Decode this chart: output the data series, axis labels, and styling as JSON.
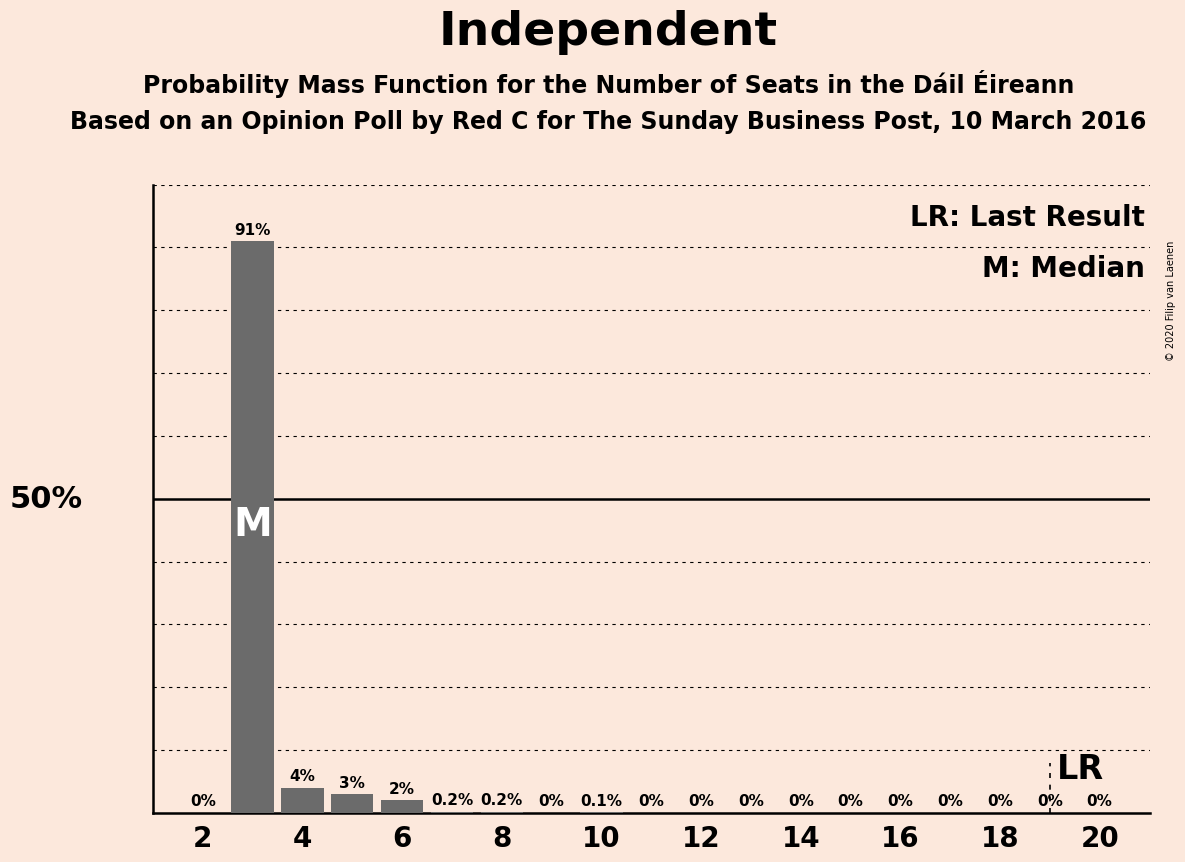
{
  "title": "Independent",
  "subtitle1": "Probability Mass Function for the Number of Seats in the Dáil Éireann",
  "subtitle2": "Based on an Opinion Poll by Red C for The Sunday Business Post, 10 March 2016",
  "copyright": "© 2020 Filip van Laenen",
  "background_color": "#fce8dc",
  "bar_color": "#6b6b6b",
  "bar_positions": [
    2,
    3,
    4,
    5,
    6,
    7,
    8,
    9,
    10,
    11,
    12,
    13,
    14,
    15,
    16,
    17,
    18,
    19,
    20
  ],
  "bar_values": [
    0.0,
    91.0,
    4.0,
    3.0,
    2.0,
    0.2,
    0.2,
    0.0,
    0.1,
    0.0,
    0.0,
    0.0,
    0.0,
    0.0,
    0.0,
    0.0,
    0.0,
    0.0,
    0.0
  ],
  "bar_labels": [
    "0%",
    "91%",
    "4%",
    "3%",
    "2%",
    "0.2%",
    "0.2%",
    "0%",
    "0.1%",
    "0%",
    "0%",
    "0%",
    "0%",
    "0%",
    "0%",
    "0%",
    "0%",
    "0%",
    "0%"
  ],
  "xlim": [
    1,
    21
  ],
  "ylim": [
    0,
    100
  ],
  "ytick_positions": [
    0,
    10,
    20,
    30,
    40,
    50,
    60,
    70,
    80,
    90,
    100
  ],
  "xticks": [
    2,
    4,
    6,
    8,
    10,
    12,
    14,
    16,
    18,
    20
  ],
  "median_bar": 3,
  "lr_x": 19,
  "lr_label": "LR",
  "median_label": "M",
  "lr_legend": "LR: Last Result",
  "median_legend": "M: Median",
  "fifty_pct_label": "50%",
  "bar_width": 0.85,
  "title_fontsize": 34,
  "subtitle_fontsize": 17,
  "tick_fontsize": 20,
  "label_fontsize": 11,
  "legend_fontsize": 20,
  "median_fontsize": 28,
  "lr_bottom_fontsize": 24,
  "fifty_fontsize": 22
}
